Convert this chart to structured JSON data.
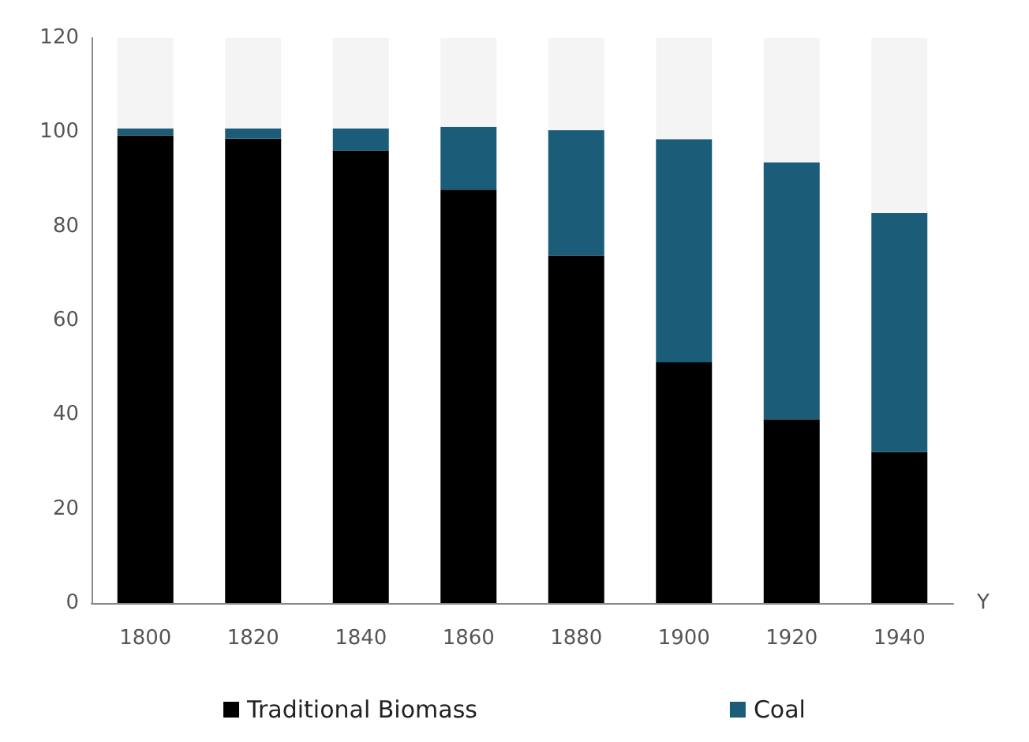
{
  "chart_data": {
    "type": "bar",
    "stacked": true,
    "xlabel": "Y",
    "categories": [
      "1800",
      "1820",
      "1840",
      "1860",
      "1880",
      "1900",
      "1920",
      "1940"
    ],
    "series": [
      {
        "name": "Traditional Biomass",
        "color": "#000000",
        "values": [
          99.3,
          98.6,
          96.1,
          87.8,
          73.8,
          51.1,
          39.0,
          32.1
        ]
      },
      {
        "name": "Coal",
        "color": "#1b5c78",
        "values": [
          1.5,
          2.2,
          4.7,
          13.3,
          26.6,
          47.4,
          54.6,
          50.7
        ]
      },
      {
        "color": "#f4f4f4",
        "values": [
          19.2,
          19.2,
          19.2,
          18.9,
          19.6,
          21.5,
          26.4,
          37.2
        ]
      }
    ],
    "ylim": [
      0,
      120
    ],
    "yticks": [
      0,
      20,
      40,
      60,
      80,
      100,
      120
    ],
    "grid": false,
    "legend": "bottom"
  }
}
